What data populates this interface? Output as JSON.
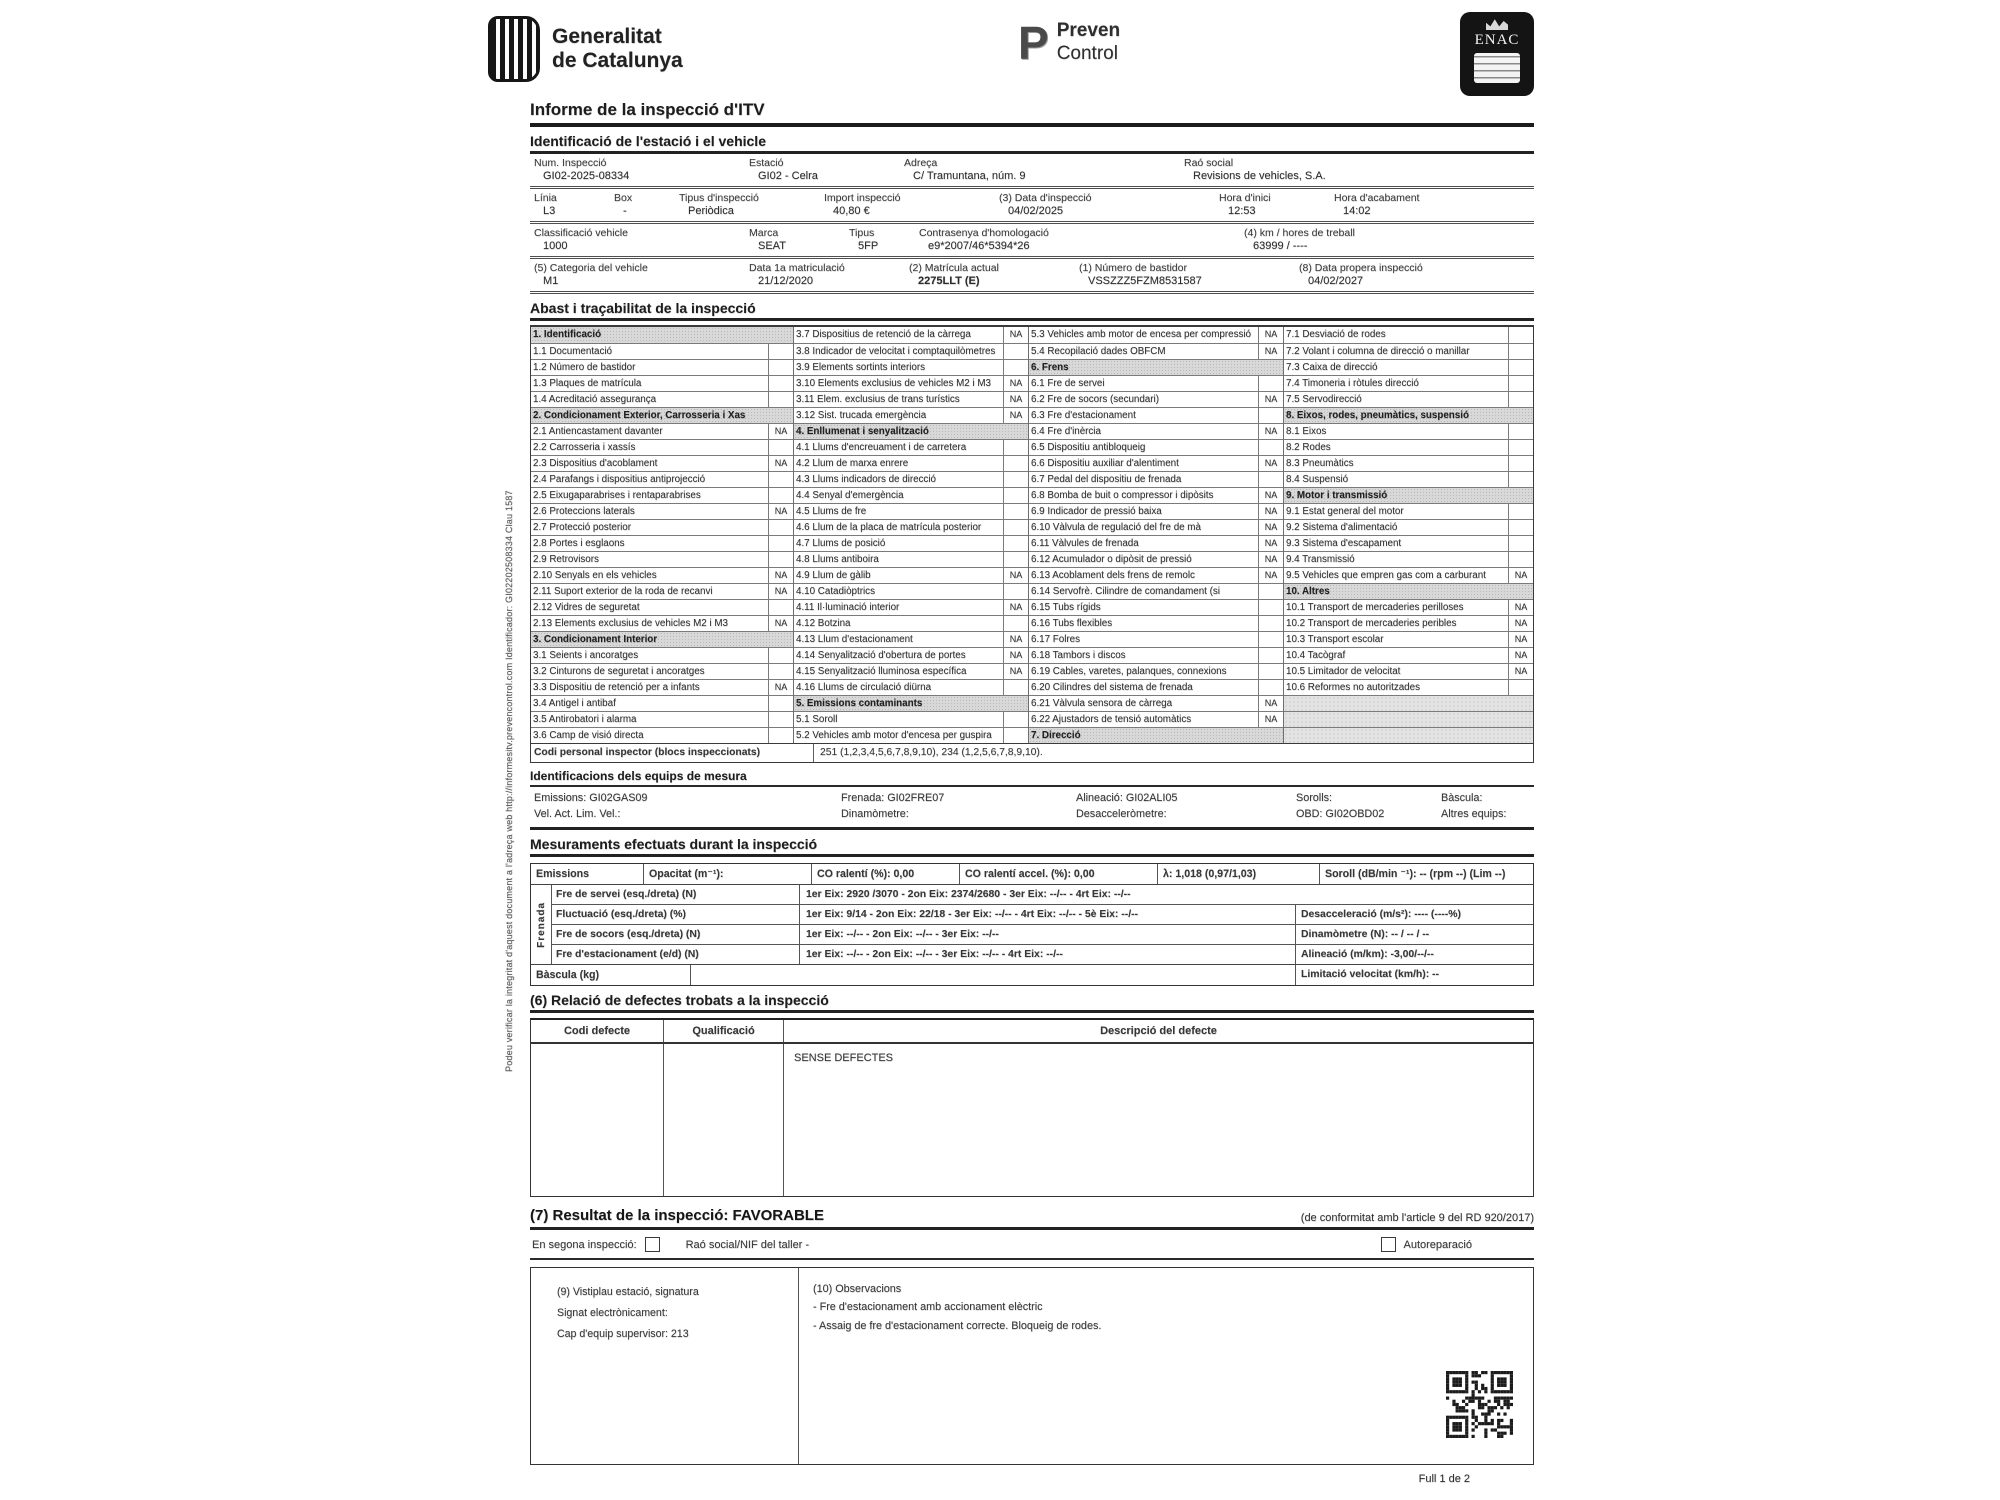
{
  "header": {
    "gencat_line1": "Generalitat",
    "gencat_line2": "de Catalunya",
    "preven_p": "P",
    "preven_line1": "Preven",
    "preven_line2": "Control",
    "enac": "ENAC"
  },
  "title": "Informe de la inspecció d'ITV",
  "side_text": "Podeu verificar la integritat d'aquest document a l'adreça web http://informesitv.prevencontrol.com Identificador: GI02202508334 Clau 1587",
  "identificacio": {
    "title": "Identificació de l'estació i el vehicle",
    "rows": [
      [
        {
          "l": "Num. Inspecció",
          "v": "GI02-2025-08334"
        },
        {
          "l": "Estació",
          "v": "GI02 - Celra"
        },
        {
          "l": "Adreça",
          "v": "C/ Tramuntana, núm. 9"
        },
        {
          "l": "Raó social",
          "v": "Revisions de vehicles, S.A."
        }
      ],
      [
        {
          "l": "Línia",
          "v": "L3"
        },
        {
          "l": "Box",
          "v": "-"
        },
        {
          "l": "Tipus d'inspecció",
          "v": "Periòdica"
        },
        {
          "l": "Import inspecció",
          "v": "40,80 €"
        },
        {
          "l": "(3) Data d'inspecció",
          "v": "04/02/2025"
        },
        {
          "l": "Hora d'inici",
          "v": "12:53"
        },
        {
          "l": "Hora d'acabament",
          "v": "14:02"
        }
      ],
      [
        {
          "l": "Classificació vehicle",
          "v": "1000"
        },
        {
          "l": "Marca",
          "v": "SEAT"
        },
        {
          "l": "Tipus",
          "v": "5FP"
        },
        {
          "l": "Contrasenya d'homologació",
          "v": "e9*2007/46*5394*26"
        },
        {
          "l": "(4) km / hores de treball",
          "v": "63999 / ----"
        }
      ],
      [
        {
          "l": "(5) Categoria del vehicle",
          "v": "M1"
        },
        {
          "l": "Data 1a matriculació",
          "v": "21/12/2020"
        },
        {
          "l": "(2) Matrícula actual",
          "v": "2275LLT (E)",
          "b": true
        },
        {
          "l": "(1) Número de bastidor",
          "v": "VSSZZZ5FZM8531587"
        },
        {
          "l": "(8) Data propera inspecció",
          "v": "04/02/2027"
        }
      ]
    ]
  },
  "abast": {
    "title": "Abast i traçabilitat de la inspecció",
    "columns": [
      [
        {
          "n": "1. Identificació",
          "h": 1
        },
        {
          "n": "1.1 Documentació",
          "s": ""
        },
        {
          "n": "1.2 Número de bastidor",
          "s": ""
        },
        {
          "n": "1.3 Plaques de matrícula",
          "s": ""
        },
        {
          "n": "1.4 Acreditació assegurança",
          "s": ""
        },
        {
          "n": "2. Condicionament Exterior, Carrosseria i Xas",
          "h": 1
        },
        {
          "n": "2.1 Antiencastament davanter",
          "s": "NA"
        },
        {
          "n": "2.2 Carrosseria i xassís",
          "s": ""
        },
        {
          "n": "2.3 Dispositius d'acoblament",
          "s": "NA"
        },
        {
          "n": "2.4 Parafangs i dispositius antiprojecció",
          "s": ""
        },
        {
          "n": "2.5 Eixugaparabrises i rentaparabrises",
          "s": ""
        },
        {
          "n": "2.6 Proteccions laterals",
          "s": "NA"
        },
        {
          "n": "2.7 Protecció posterior",
          "s": ""
        },
        {
          "n": "2.8 Portes i esglaons",
          "s": ""
        },
        {
          "n": "2.9 Retrovisors",
          "s": ""
        },
        {
          "n": "2.10 Senyals en els vehicles",
          "s": "NA"
        },
        {
          "n": "2.11 Suport exterior de la roda de recanvi",
          "s": "NA"
        },
        {
          "n": "2.12 Vidres de seguretat",
          "s": ""
        },
        {
          "n": "2.13 Elements exclusius de vehicles M2 i M3",
          "s": "NA"
        },
        {
          "n": "3. Condicionament Interior",
          "h": 1
        },
        {
          "n": "3.1 Seients i ancoratges",
          "s": ""
        },
        {
          "n": "3.2 Cinturons de seguretat i ancoratges",
          "s": ""
        },
        {
          "n": "3.3 Dispositiu de retenció per a infants",
          "s": "NA"
        },
        {
          "n": "3.4 Antigel i antibaf",
          "s": ""
        },
        {
          "n": "3.5 Antirobatori i alarma",
          "s": ""
        },
        {
          "n": "3.6 Camp de visió directa",
          "s": ""
        }
      ],
      [
        {
          "n": "3.7 Dispositius de retenció de la càrrega",
          "s": "NA"
        },
        {
          "n": "3.8 Indicador de velocitat i comptaquilòmetres",
          "s": ""
        },
        {
          "n": "3.9 Elements sortints interiors",
          "s": ""
        },
        {
          "n": "3.10 Elements exclusius de vehicles M2 i M3",
          "s": "NA"
        },
        {
          "n": "3.11 Elem. exclusius de trans turístics",
          "s": "NA"
        },
        {
          "n": "3.12 Sist. trucada emergència",
          "s": "NA"
        },
        {
          "n": "4. Enllumenat i senyalització",
          "h": 1
        },
        {
          "n": "4.1 Llums d'encreuament i de carretera",
          "s": ""
        },
        {
          "n": "4.2 Llum de marxa enrere",
          "s": ""
        },
        {
          "n": "4.3 Llums indicadors de direcció",
          "s": ""
        },
        {
          "n": "4.4 Senyal d'emergència",
          "s": ""
        },
        {
          "n": "4.5 Llums de fre",
          "s": ""
        },
        {
          "n": "4.6 Llum de la placa de matrícula posterior",
          "s": ""
        },
        {
          "n": "4.7 Llums de posició",
          "s": ""
        },
        {
          "n": "4.8 Llums antiboira",
          "s": ""
        },
        {
          "n": "4.9 Llum de gàlib",
          "s": "NA"
        },
        {
          "n": "4.10 Catadiòptrics",
          "s": ""
        },
        {
          "n": "4.11 Il·luminació interior",
          "s": "NA"
        },
        {
          "n": "4.12 Botzina",
          "s": ""
        },
        {
          "n": "4.13 Llum d'estacionament",
          "s": "NA"
        },
        {
          "n": "4.14 Senyalització d'obertura de portes",
          "s": "NA"
        },
        {
          "n": "4.15 Senyalització lluminosa específica",
          "s": "NA"
        },
        {
          "n": "4.16 Llums de circulació diürna",
          "s": ""
        },
        {
          "n": "5. Emissions contaminants",
          "h": 1
        },
        {
          "n": "5.1 Soroll",
          "s": ""
        },
        {
          "n": "5.2 Vehicles amb motor d'encesa per guspira",
          "s": ""
        }
      ],
      [
        {
          "n": "5.3 Vehicles amb motor de encesa per compressió",
          "s": "NA"
        },
        {
          "n": "5.4 Recopilació dades OBFCM",
          "s": "NA"
        },
        {
          "n": "6. Frens",
          "h": 1
        },
        {
          "n": "6.1 Fre de servei",
          "s": ""
        },
        {
          "n": "6.2 Fre de socors (secundari)",
          "s": "NA"
        },
        {
          "n": "6.3 Fre d'estacionament",
          "s": ""
        },
        {
          "n": "6.4 Fre d'inèrcia",
          "s": "NA"
        },
        {
          "n": "6.5 Dispositiu antibloqueig",
          "s": ""
        },
        {
          "n": "6.6 Dispositiu auxiliar d'alentiment",
          "s": "NA"
        },
        {
          "n": "6.7 Pedal del dispositiu de frenada",
          "s": ""
        },
        {
          "n": "6.8 Bomba de buit o compressor i dipòsits",
          "s": "NA"
        },
        {
          "n": "6.9 Indicador de pressió baixa",
          "s": "NA"
        },
        {
          "n": "6.10 Vàlvula de regulació del fre de mà",
          "s": "NA"
        },
        {
          "n": "6.11 Vàlvules de frenada",
          "s": "NA"
        },
        {
          "n": "6.12 Acumulador o dipòsit de pressió",
          "s": "NA"
        },
        {
          "n": "6.13 Acoblament dels frens de remolc",
          "s": "NA"
        },
        {
          "n": "6.14 Servofrè. Cilindre de comandament (si",
          "s": ""
        },
        {
          "n": "6.15 Tubs rígids",
          "s": ""
        },
        {
          "n": "6.16 Tubs flexibles",
          "s": ""
        },
        {
          "n": "6.17 Folres",
          "s": ""
        },
        {
          "n": "6.18 Tambors i discos",
          "s": ""
        },
        {
          "n": "6.19 Cables, varetes, palanques, connexions",
          "s": ""
        },
        {
          "n": "6.20 Cilindres del sistema de frenada",
          "s": ""
        },
        {
          "n": "6.21 Vàlvula sensora de càrrega",
          "s": "NA"
        },
        {
          "n": "6.22 Ajustadors de tensió automàtics",
          "s": "NA"
        },
        {
          "n": "7. Direcció",
          "h": 1
        }
      ],
      [
        {
          "n": "7.1 Desviació de rodes",
          "s": ""
        },
        {
          "n": "7.2 Volant i columna de direcció o manillar",
          "s": ""
        },
        {
          "n": "7.3 Caixa de direcció",
          "s": ""
        },
        {
          "n": "7.4 Timoneria i ròtules direcció",
          "s": ""
        },
        {
          "n": "7.5 Servodirecció",
          "s": ""
        },
        {
          "n": "8. Eixos, rodes, pneumàtics, suspensió",
          "h": 1
        },
        {
          "n": "8.1 Eixos",
          "s": ""
        },
        {
          "n": "8.2 Rodes",
          "s": ""
        },
        {
          "n": "8.3 Pneumàtics",
          "s": ""
        },
        {
          "n": "8.4 Suspensió",
          "s": ""
        },
        {
          "n": "9. Motor i transmissió",
          "h": 1
        },
        {
          "n": "9.1 Estat general del motor",
          "s": ""
        },
        {
          "n": "9.2 Sistema d'alimentació",
          "s": ""
        },
        {
          "n": "9.3 Sistema d'escapament",
          "s": ""
        },
        {
          "n": "9.4 Transmissió",
          "s": ""
        },
        {
          "n": "9.5 Vehicles que empren gas com a carburant",
          "s": "NA"
        },
        {
          "n": "10. Altres",
          "h": 1
        },
        {
          "n": "10.1 Transport de mercaderies perilloses",
          "s": "NA"
        },
        {
          "n": "10.2 Transport de mercaderies peribles",
          "s": "NA"
        },
        {
          "n": "10.3 Transport escolar",
          "s": "NA"
        },
        {
          "n": "10.4 Tacògraf",
          "s": "NA"
        },
        {
          "n": "10.5 Limitador de velocitat",
          "s": "NA"
        },
        {
          "n": "10.6 Reformes no autoritzades",
          "s": ""
        },
        {
          "blank": 1
        },
        {
          "blank": 1
        },
        {
          "blank": 1
        }
      ]
    ],
    "codi_label": "Codi personal inspector (blocs inspeccionats)",
    "codi_value": "251 (1,2,3,4,5,6,7,8,9,10), 234 (1,2,5,6,7,8,9,10)."
  },
  "equips": {
    "title": "Identificacions dels equips de mesura",
    "rows": [
      [
        "Emissions: GI02GAS09",
        "Frenada: GI02FRE07",
        "Alineació: GI02ALI05",
        "Sorolls:",
        "Bàscula:"
      ],
      [
        "Vel. Act. Lim. Vel.:",
        "Dinamòmetre:",
        "Desacceleròmetre:",
        "OBD: GI02OBD02",
        "Altres equips:"
      ]
    ]
  },
  "mesuraments": {
    "title": "Mesuraments efectuats durant la inspecció",
    "emissions_cells": [
      "Emissions",
      "Opacitat (m⁻¹):",
      "CO ralentí (%): 0,00",
      "CO ralentí accel. (%): 0,00",
      "λ: 1,018 (0,97/1,03)",
      "Soroll (dB/min ⁻¹): -- (rpm --) (Lim --)"
    ],
    "frenada_vertical_label": "Frenada",
    "frenada_rows": [
      {
        "p": "Fre de servei (esq./dreta) (N)",
        "v": "1er Eix: 2920 /3070 - 2on Eix: 2374/2680 - 3er Eix: --/-- - 4rt Eix: --/--",
        "r": null
      },
      {
        "p": "Fluctuació (esq./dreta) (%)",
        "v": "1er Eix: 9/14 - 2on Eix: 22/18 - 3er Eix: --/-- - 4rt Eix: --/-- - 5è Eix: --/--",
        "r": "Desacceleració (m/s²): ---- (----%)"
      },
      {
        "p": "Fre de socors (esq./dreta) (N)",
        "v": "1er Eix: --/-- - 2on Eix: --/-- - 3er Eix: --/--",
        "r": "Dinamòmetre (N): -- / -- / --"
      },
      {
        "p": "Fre d'estacionament (e/d) (N)",
        "v": "1er Eix: --/-- - 2on Eix: --/-- - 3er Eix: --/-- - 4rt Eix: --/--",
        "r": "Alineació (m/km): -3,00/--/--"
      }
    ],
    "bascula_label": "Bàscula (kg)",
    "limitacio_label": "Limitació velocitat (km/h): --"
  },
  "defectes": {
    "title": "(6) Relació de defectes trobats a la inspecció",
    "headers": [
      "Codi defecte",
      "Qualificació",
      "Descripció del defecte"
    ],
    "body_text": "SENSE DEFECTES"
  },
  "resultat": {
    "title": "(7) Resultat de la inspecció: FAVORABLE",
    "note": "(de conformitat amb l'article 9 del RD 920/2017)",
    "segona_label": "En segona inspecció:",
    "taller_label": "Raó social/NIF del taller  -",
    "autoreparacio_label": "Autoreparació",
    "signature_lines": [
      "(9) Vistiplau estació, signatura",
      "Signat electrònicament:",
      "Cap d'equip supervisor: 213"
    ],
    "observacions_title": "(10) Observacions",
    "observacions_lines": [
      "- Fre d'estacionament amb accionament elèctric",
      "- Assaig de fre d'estacionament correcte. Bloqueig de rodes."
    ]
  },
  "footer": "Full 1 de 2"
}
